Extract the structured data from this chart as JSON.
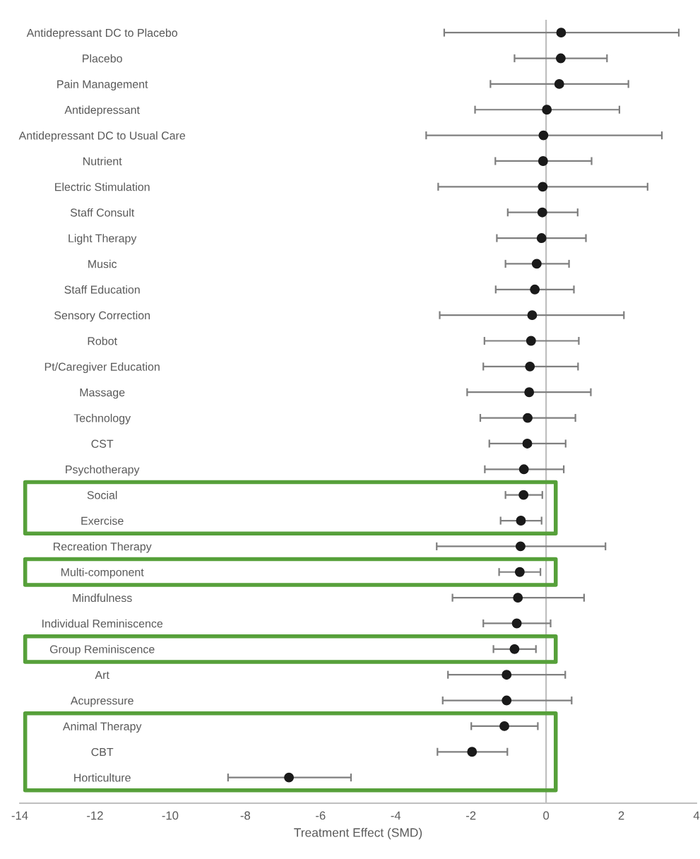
{
  "chart_data": {
    "type": "scatter",
    "orientation": "horizontal",
    "xlabel": "Treatment Effect (SMD)",
    "categories": [
      "Antidepressant DC to Placebo",
      "Placebo",
      "Pain Management",
      "Antidepressant",
      "Antidepressant DC to Usual Care",
      "Nutrient",
      "Electric Stimulation",
      "Staff Consult",
      "Light Therapy",
      "Music",
      "Staff Education",
      "Sensory Correction",
      "Robot",
      "Pt/Caregiver Education",
      "Massage",
      "Technology",
      "CST",
      "Psychotherapy",
      "Social",
      "Exercise",
      "Recreation Therapy",
      "Multi-component",
      "Mindfulness",
      "Individual Reminiscence",
      "Group Reminiscence",
      "Art",
      "Acupressure",
      "Animal Therapy",
      "CBT",
      "Horticulture"
    ],
    "values": [
      0.4,
      0.39,
      0.35,
      0.02,
      -0.07,
      -0.08,
      -0.09,
      -0.1,
      -0.12,
      -0.25,
      -0.3,
      -0.37,
      -0.4,
      -0.43,
      -0.45,
      -0.49,
      -0.5,
      -0.59,
      -0.6,
      -0.67,
      -0.68,
      -0.7,
      -0.75,
      -0.78,
      -0.84,
      -1.05,
      -1.05,
      -1.11,
      -1.97,
      -6.84
    ],
    "errors": [
      [
        -2.71,
        3.53
      ],
      [
        -0.84,
        1.62
      ],
      [
        -1.48,
        2.19
      ],
      [
        -1.89,
        1.95
      ],
      [
        -3.19,
        3.08
      ],
      [
        -1.35,
        1.21
      ],
      [
        -2.87,
        2.7
      ],
      [
        -1.02,
        0.84
      ],
      [
        -1.31,
        1.06
      ],
      [
        -1.08,
        0.61
      ],
      [
        -1.34,
        0.74
      ],
      [
        -2.83,
        2.07
      ],
      [
        -1.64,
        0.87
      ],
      [
        -1.67,
        0.85
      ],
      [
        -2.1,
        1.19
      ],
      [
        -1.75,
        0.78
      ],
      [
        -1.51,
        0.52
      ],
      [
        -1.63,
        0.47
      ],
      [
        -1.08,
        -0.1
      ],
      [
        -1.21,
        -0.12
      ],
      [
        -2.91,
        1.58
      ],
      [
        -1.25,
        -0.15
      ],
      [
        -2.49,
        1.01
      ],
      [
        -1.67,
        0.12
      ],
      [
        -1.4,
        -0.27
      ],
      [
        -2.61,
        0.51
      ],
      [
        -2.75,
        0.68
      ],
      [
        -1.99,
        -0.22
      ],
      [
        -2.89,
        -1.03
      ],
      [
        -8.46,
        -5.19
      ]
    ],
    "color": "#1a1a1a",
    "marker": "circle",
    "xlim": [
      -14,
      4
    ],
    "xticks": [
      -14,
      -12,
      -10,
      -8,
      -6,
      -4,
      -2,
      0,
      2,
      4
    ],
    "grid": false,
    "ref_lines": [
      {
        "axis": "x",
        "value": 0,
        "color": "#bfbfbf"
      }
    ]
  }
}
